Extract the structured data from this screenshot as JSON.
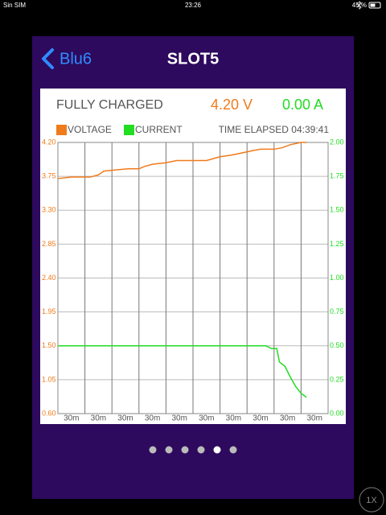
{
  "status_bar": {
    "carrier": "Sin SIM",
    "time": "23:26",
    "battery": "45 %"
  },
  "header": {
    "back_label": "Blu6",
    "title": "SLOT5"
  },
  "speed_button": "1X",
  "chart_data": {
    "type": "line",
    "status": "FULLY CHARGED",
    "voltage_reading": "4.20 V",
    "current_reading": "0.00 A",
    "elapsed": "TIME ELAPSED 04:39:41",
    "xlim": [
      0,
      10
    ],
    "xticks": [
      {
        "value": 1,
        "label": "30m"
      },
      {
        "value": 2,
        "label": "30m"
      },
      {
        "value": 3,
        "label": "30m"
      },
      {
        "value": 4,
        "label": "30m"
      },
      {
        "value": 5,
        "label": "30m"
      },
      {
        "value": 6,
        "label": "30m"
      },
      {
        "value": 7,
        "label": "30m"
      },
      {
        "value": 8,
        "label": "30m"
      },
      {
        "value": 9,
        "label": "30m"
      },
      {
        "value": 10,
        "label": "30m"
      }
    ],
    "ylim": [
      0.6,
      4.2
    ],
    "yticks": [
      {
        "value": 4.2,
        "label": "4.20"
      },
      3.75,
      {
        "value": 3.3,
        "label": "3.30"
      },
      2.85,
      {
        "value": 2.4,
        "label": "2.40"
      },
      1.95,
      {
        "value": 1.5,
        "label": "1.50"
      },
      1.05,
      {
        "value": 0.6,
        "label": "0.60"
      }
    ],
    "y2lim": [
      0,
      2
    ],
    "y2ticks": [
      {
        "value": 2,
        "label": "2.00"
      },
      1.75,
      {
        "value": 1.5,
        "label": "1.50"
      },
      1.25,
      {
        "value": 1,
        "label": "1.00"
      },
      0.75,
      {
        "value": 0.5,
        "label": "0.50"
      },
      0.25,
      {
        "value": 0,
        "label": "0.00"
      }
    ],
    "grid": true,
    "series": [
      {
        "name": "VOLTAGE",
        "color": "#f07b1c",
        "x": [
          0,
          0.5,
          1.2,
          1.5,
          1.7,
          2.0,
          2.6,
          3.0,
          3.2,
          3.5,
          4.0,
          4.4,
          5.0,
          5.5,
          5.7,
          6.0,
          6.4,
          6.8,
          7.2,
          7.5,
          8.0,
          8.3,
          8.6,
          9.0,
          9.2
        ],
        "values": [
          3.72,
          3.74,
          3.74,
          3.77,
          3.82,
          3.83,
          3.85,
          3.85,
          3.88,
          3.91,
          3.93,
          3.96,
          3.96,
          3.96,
          3.98,
          4.01,
          4.03,
          4.06,
          4.09,
          4.11,
          4.11,
          4.13,
          4.17,
          4.2,
          4.2
        ]
      },
      {
        "name": "CURRENT",
        "color": "#22dd22",
        "axis": "y2",
        "x": [
          0,
          7.7,
          7.9,
          8.1,
          8.2,
          8.4,
          8.6,
          8.8,
          9.0,
          9.2
        ],
        "values": [
          0.5,
          0.5,
          0.48,
          0.48,
          0.38,
          0.35,
          0.27,
          0.2,
          0.15,
          0.12
        ]
      }
    ]
  }
}
